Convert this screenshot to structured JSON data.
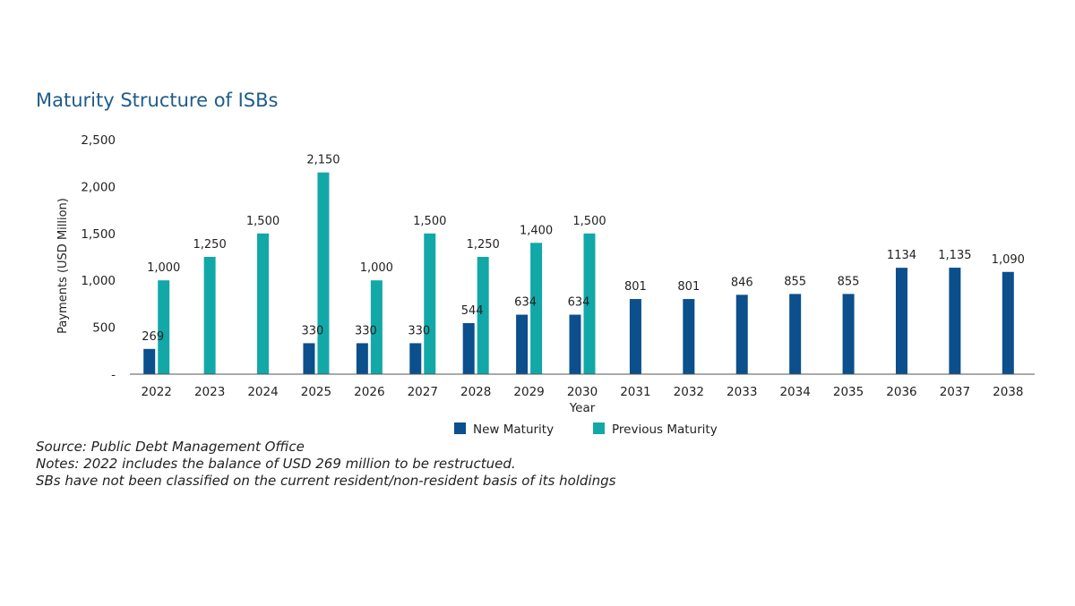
{
  "chart_data": {
    "type": "bar",
    "title": "Maturity Structure of ISBs",
    "xlabel": "Year",
    "ylabel": "Payments (USD Million)",
    "ylim": [
      0,
      2500
    ],
    "yticks": [
      "-",
      "500",
      "1,000",
      "1,500",
      "2,000",
      "2,500"
    ],
    "categories": [
      "2022",
      "2023",
      "2024",
      "2025",
      "2026",
      "2027",
      "2028",
      "2029",
      "2030",
      "2031",
      "2032",
      "2033",
      "2034",
      "2035",
      "2036",
      "2037",
      "2038"
    ],
    "series": [
      {
        "name": "New Maturity",
        "color": "#0b4f8c",
        "values": [
          269,
          null,
          null,
          330,
          330,
          330,
          544,
          634,
          634,
          801,
          801,
          846,
          855,
          855,
          1134,
          1135,
          1090
        ],
        "labels": [
          "269",
          "",
          "",
          "330",
          "330",
          "330",
          "544",
          "634",
          "634",
          "801",
          "801",
          "846",
          "855",
          "855",
          "1134",
          "1,135",
          "1,090"
        ]
      },
      {
        "name": "Previous Maturity",
        "color": "#12a8a8",
        "values": [
          1000,
          1250,
          1500,
          2150,
          1000,
          1500,
          1250,
          1400,
          1500,
          null,
          null,
          null,
          null,
          null,
          null,
          null,
          null
        ],
        "labels": [
          "1,000",
          "1,250",
          "1,500",
          "2,150",
          "1,000",
          "1,500",
          "1,250",
          "1,400",
          "1,500",
          "",
          "",
          "",
          "",
          "",
          "",
          "",
          ""
        ]
      }
    ],
    "legend_position": "bottom",
    "grid": false
  },
  "notes": {
    "source": "Source: Public Debt Management Office",
    "note1": "Notes: 2022 includes the balance of USD 269 million to be restructued.",
    "note2": "SBs have not been classified on the current resident/non-resident basis of its holdings"
  }
}
